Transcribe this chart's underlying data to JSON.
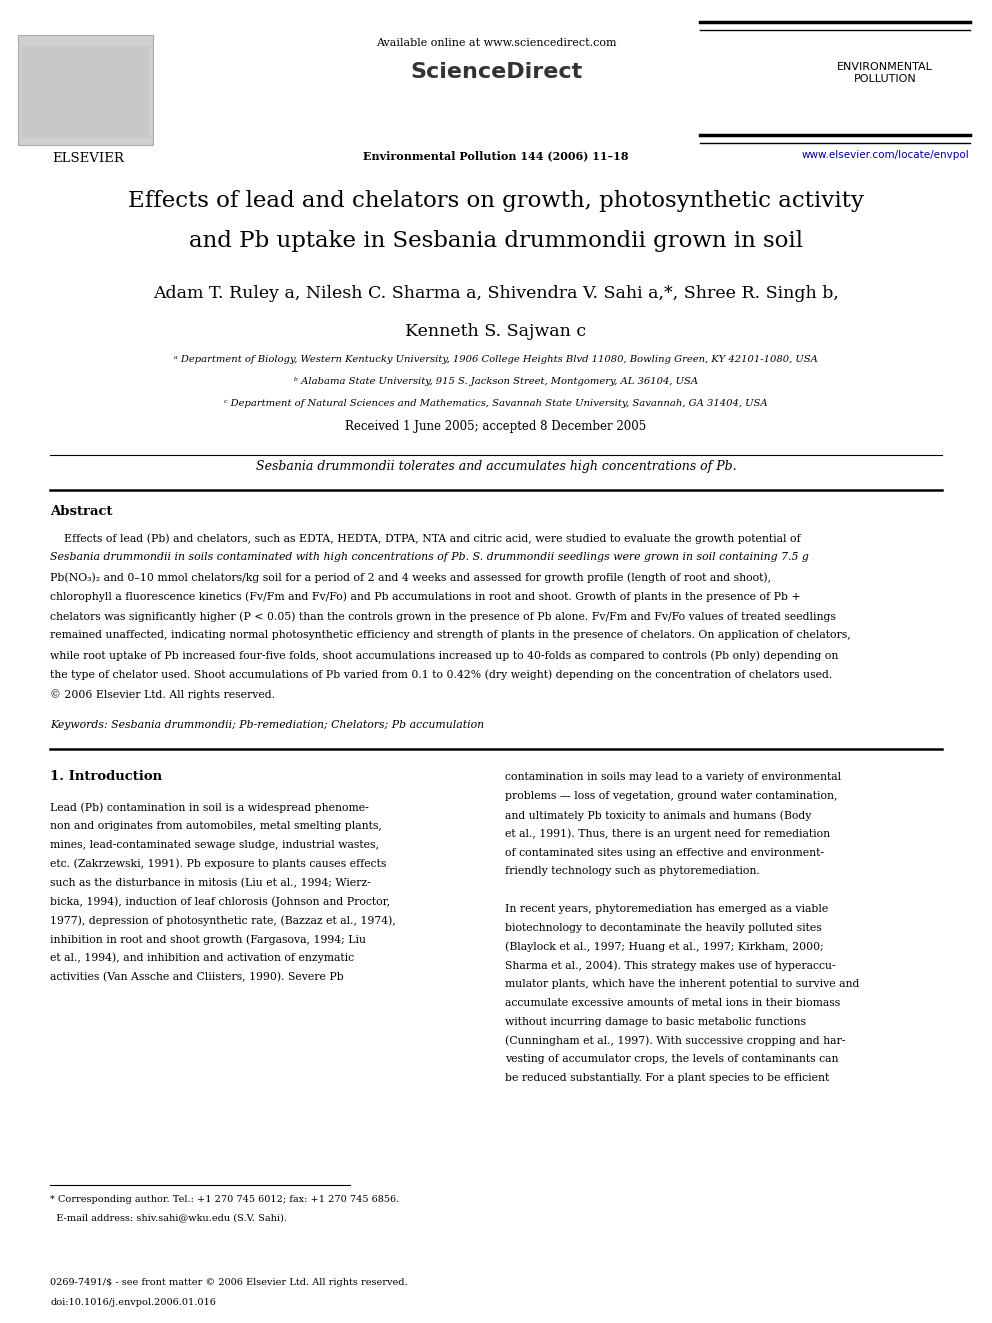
{
  "page_width": 9.92,
  "page_height": 13.23,
  "bg_color": "#ffffff",
  "header": {
    "available_online": "Available online at www.sciencedirect.com",
    "sciencedirect": "ScienceDirect",
    "journal_info": "Environmental Pollution 144 (2006) 11–18",
    "journal_name_right": "ENVIRONMENTAL\nPOLLUTION",
    "url_right": "www.elsevier.com/locate/envpol",
    "elsevier_text": "ELSEVIER"
  },
  "title_line1": "Effects of lead and chelators on growth, photosynthetic activity",
  "title_line2_pre": "and Pb uptake in ",
  "title_line2_italic": "Sesbania drummondii",
  "title_line2_post": " grown in soil",
  "author_line1": "Adam T. Ruley",
  "author_line1_sup1": "a",
  "author_line1_b": ", Nilesh C. Sharma",
  "author_line1_sup2": "a",
  "author_line1_c": ", Shivendra V. Sahi",
  "author_line1_sup3": "a,*",
  "author_line1_d": ", Shree R. Singh",
  "author_line1_sup4": "b",
  "author_line1_e": ",",
  "author_line2": "Kenneth S. Sajwan",
  "author_line2_sup": "c",
  "aff_a": "ᵃ Department of Biology, Western Kentucky University, 1906 College Heights Blvd 11080, Bowling Green, KY 42101-1080, USA",
  "aff_b": "ᵇ Alabama State University, 915 S. Jackson Street, Montgomery, AL 36104, USA",
  "aff_c": "ᶜ Department of Natural Sciences and Mathematics, Savannah State University, Savannah, GA 31404, USA",
  "received": "Received 1 June 2005; accepted 8 December 2005",
  "graphical_abstract": "Sesbania drummondii tolerates and accumulates high concentrations of Pb.",
  "abstract_title": "Abstract",
  "abstract_lines": [
    "    Effects of lead (Pb) and chelators, such as EDTA, HEDTA, DTPA, NTA and citric acid, were studied to evaluate the growth potential of",
    "Sesbania drummondii in soils contaminated with high concentrations of Pb. S. drummondii seedlings were grown in soil containing 7.5 g",
    "Pb(NO₃)₂ and 0–10 mmol chelators/kg soil for a period of 2 and 4 weeks and assessed for growth profile (length of root and shoot),",
    "chlorophyll a fluorescence kinetics (Fv/Fm and Fv/Fo) and Pb accumulations in root and shoot. Growth of plants in the presence of Pb +",
    "chelators was significantly higher (P < 0.05) than the controls grown in the presence of Pb alone. Fv/Fm and Fv/Fo values of treated seedlings",
    "remained unaffected, indicating normal photosynthetic efficiency and strength of plants in the presence of chelators. On application of chelators,",
    "while root uptake of Pb increased four-five folds, shoot accumulations increased up to 40-folds as compared to controls (Pb only) depending on",
    "the type of chelator used. Shoot accumulations of Pb varied from 0.1 to 0.42% (dry weight) depending on the concentration of chelators used.",
    "© 2006 Elsevier Ltd. All rights reserved."
  ],
  "abstract_italic_lines": [
    1
  ],
  "keywords": "Keywords: Sesbania drummondii; Pb-remediation; Chelators; Pb accumulation",
  "intro_title": "1. Introduction",
  "col1_lines": [
    "Lead (Pb) contamination in soil is a widespread phenome-",
    "non and originates from automobiles, metal smelting plants,",
    "mines, lead-contaminated sewage sludge, industrial wastes,",
    "etc. (Zakrzewski, 1991). Pb exposure to plants causes effects",
    "such as the disturbance in mitosis (Liu et al., 1994; Wierz-",
    "bicka, 1994), induction of leaf chlorosis (Johnson and Proctor,",
    "1977), depression of photosynthetic rate, (Bazzaz et al., 1974),",
    "inhibition in root and shoot growth (Fargasova, 1994; Liu",
    "et al., 1994), and inhibition and activation of enzymatic",
    "activities (Van Assche and Cliisters, 1990). Severe Pb"
  ],
  "col2_lines": [
    "contamination in soils may lead to a variety of environmental",
    "problems — loss of vegetation, ground water contamination,",
    "and ultimately Pb toxicity to animals and humans (Body",
    "et al., 1991). Thus, there is an urgent need for remediation",
    "of contaminated sites using an effective and environment-",
    "friendly technology such as phytoremediation.",
    "",
    "In recent years, phytoremediation has emerged as a viable",
    "biotechnology to decontaminate the heavily polluted sites",
    "(Blaylock et al., 1997; Huang et al., 1997; Kirkham, 2000;",
    "Sharma et al., 2004). This strategy makes use of hyperaccu-",
    "mulator plants, which have the inherent potential to survive and",
    "accumulate excessive amounts of metal ions in their biomass",
    "without incurring damage to basic metabolic functions",
    "(Cunningham et al., 1997). With successive cropping and har-",
    "vesting of accumulator crops, the levels of contaminants can",
    "be reduced substantially. For a plant species to be efficient"
  ],
  "footnote1": "* Corresponding author. Tel.: +1 270 745 6012; fax: +1 270 745 6856.",
  "footnote2": "  E-mail address: shiv.sahi@wku.edu (S.V. Sahi).",
  "footer1": "0269-7491/$ - see front matter © 2006 Elsevier Ltd. All rights reserved.",
  "footer2": "doi:10.1016/j.envpol.2006.01.016",
  "line_color": "#000000",
  "url_color": "#000099",
  "body_fontsize": 7.8,
  "title_fontsize": 16.5,
  "author_fontsize": 12.5,
  "aff_fontsize": 7.2,
  "section_fontsize": 9.5,
  "col_fontsize": 7.8
}
